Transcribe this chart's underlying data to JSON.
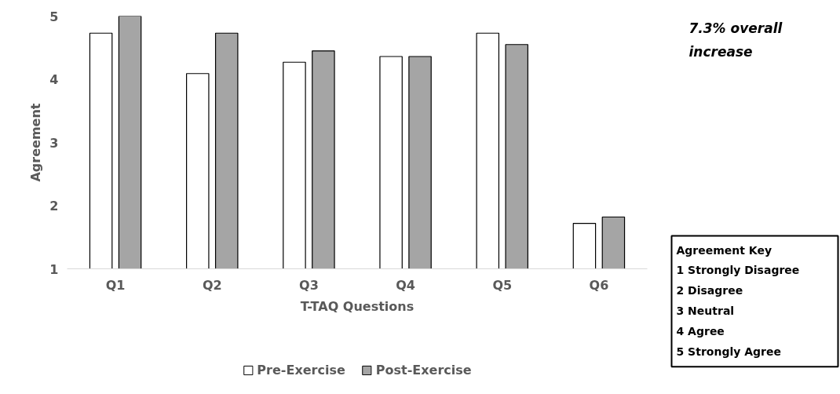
{
  "chart_data": {
    "type": "bar",
    "categories": [
      "Q1",
      "Q2",
      "Q3",
      "Q4",
      "Q5",
      "Q6"
    ],
    "xlabel": "T-TAQ Questions",
    "ylabel": "Agreement",
    "ylim": [
      1,
      5
    ],
    "yticks": [
      1,
      2,
      3,
      4,
      5
    ],
    "grid": false,
    "legend": "bottom",
    "series": [
      {
        "name": "Pre-Exercise",
        "color": "#ffffff",
        "values": [
          4.73,
          4.09,
          4.27,
          4.36,
          4.73,
          1.72
        ]
      },
      {
        "name": "Post-Exercise",
        "color": "#a5a5a5",
        "values": [
          5.0,
          4.73,
          4.45,
          4.36,
          4.55,
          1.82
        ]
      }
    ],
    "annotations": [
      "7.3% overall increase",
      "Agreement Key",
      "1  Strongly Disagree",
      "2  Disagree",
      "3  Neutral",
      "4  Agree",
      "5  Strongly Agree"
    ]
  }
}
